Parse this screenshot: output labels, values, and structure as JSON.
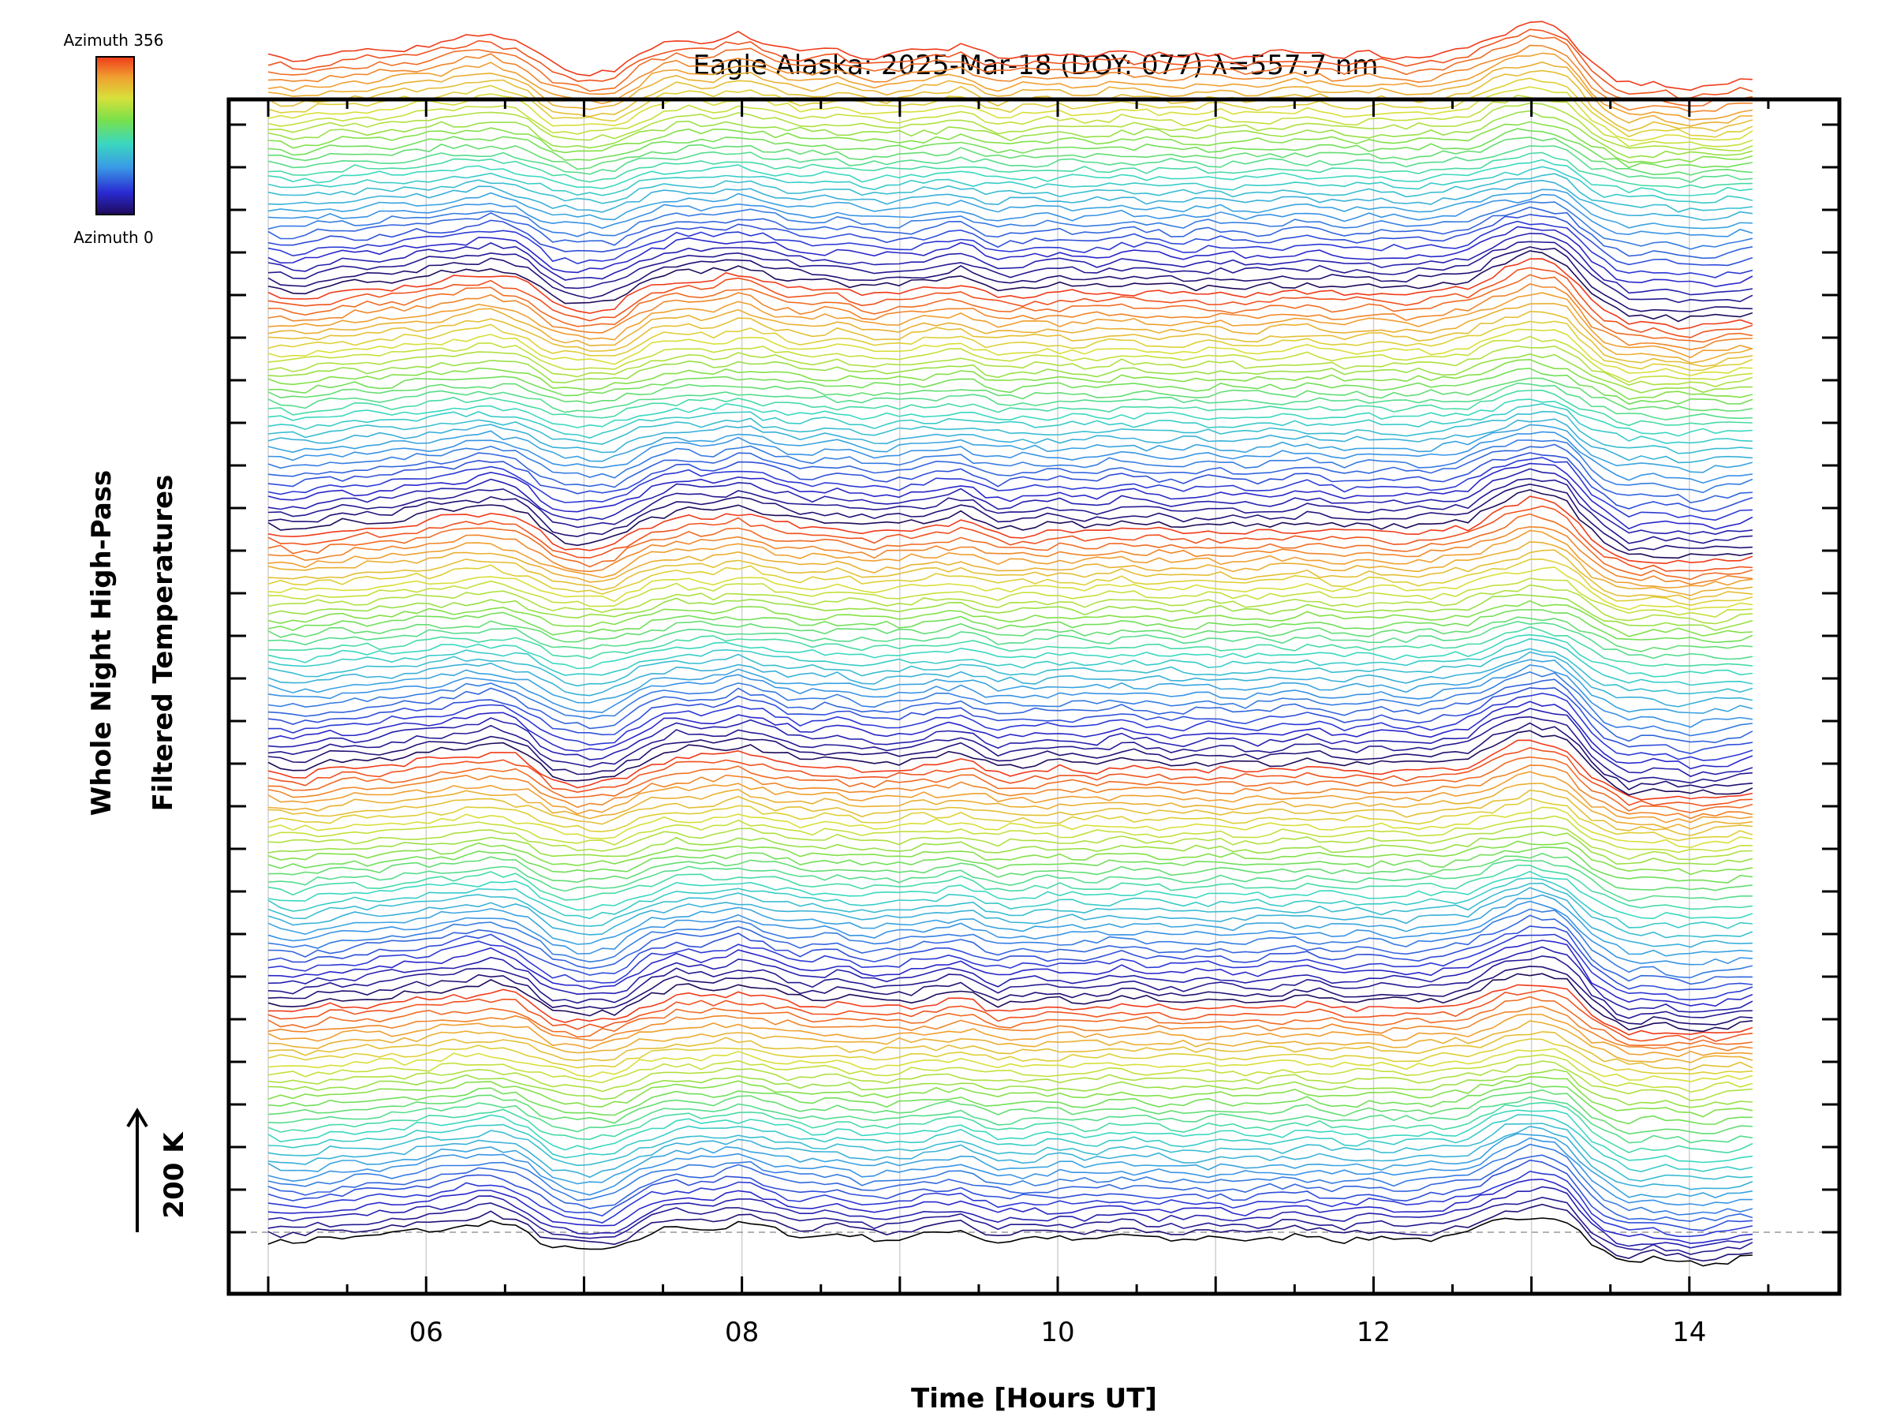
{
  "chart_data": {
    "type": "line",
    "title": "Eagle Alaska: 2025-Mar-18 (DOY: 077) λ=557.7 nm",
    "xlabel": "Time [Hours UT]",
    "ylabel_line1": "Whole Night High-Pass",
    "ylabel_line2": "Filtered Temperatures",
    "scale_label": "200 K",
    "colorbar": {
      "top_label": "Azimuth 356",
      "bottom_label": "Azimuth 0",
      "min": 0,
      "max": 356,
      "colormap": "rainbow"
    },
    "xlim": [
      4.75,
      14.95
    ],
    "x_ticks": [
      6,
      8,
      10,
      12,
      14
    ],
    "x_tick_labels": [
      "06",
      "08",
      "10",
      "12",
      "14"
    ],
    "time_range": [
      5.0,
      14.4
    ],
    "n_traces": 160,
    "trace_groups": 5,
    "trace_offset_K": 17.5,
    "y_grid": "none",
    "x_grid": "hourly",
    "baseline_dashed": true,
    "colors": {
      "frame": "#000000",
      "grid": "#d0d0d0",
      "baseline": "#999999",
      "background": "#ffffff"
    },
    "reference_profile": {
      "hours": [
        5.0,
        5.2,
        5.4,
        5.6,
        5.8,
        6.0,
        6.2,
        6.4,
        6.6,
        6.8,
        7.0,
        7.2,
        7.4,
        7.6,
        7.8,
        8.0,
        8.2,
        8.4,
        8.6,
        8.8,
        9.0,
        9.2,
        9.4,
        9.6,
        9.8,
        10.0,
        10.2,
        10.4,
        10.6,
        10.8,
        11.0,
        11.2,
        11.4,
        11.6,
        11.8,
        12.0,
        12.2,
        12.4,
        12.6,
        12.8,
        13.0,
        13.2,
        13.4,
        13.6,
        13.8,
        14.0,
        14.2,
        14.4
      ],
      "temperature_K": [
        -20,
        -30,
        -15,
        -10,
        -5,
        5,
        15,
        25,
        10,
        -40,
        -55,
        -45,
        -5,
        15,
        10,
        25,
        5,
        -10,
        -5,
        -20,
        -15,
        -5,
        5,
        -25,
        -20,
        -15,
        -20,
        -10,
        -15,
        -20,
        -15,
        -20,
        -15,
        -10,
        -20,
        -15,
        -20,
        -15,
        -5,
        30,
        50,
        40,
        -40,
        -80,
        -75,
        -85,
        -80,
        -70
      ]
    }
  }
}
